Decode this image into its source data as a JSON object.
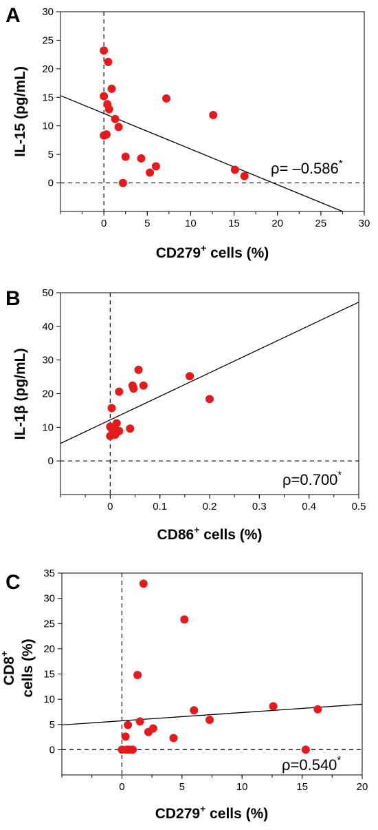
{
  "chart_data": [
    {
      "type": "scatter",
      "panel_label": "A",
      "xlabel_main": "CD279",
      "xlabel_sup": "+",
      "xlabel_rest": " cells (%)",
      "ylabel": "IL-15 (pg/mL)",
      "xlim": [
        -5,
        30
      ],
      "ylim": [
        -5,
        30
      ],
      "xticks": [
        0,
        5,
        10,
        15,
        20,
        25,
        30
      ],
      "yticks": [
        0,
        5,
        10,
        15,
        20,
        25,
        30
      ],
      "annotation": "ρ= –0.586",
      "annotation_mark": "*",
      "fit_line": [
        [
          -5,
          15.3
        ],
        [
          27.5,
          -5
        ]
      ],
      "x": [
        0,
        0.5,
        0.9,
        0,
        0.4,
        0.6,
        1.3,
        7.2,
        12.6,
        1.7,
        0.3,
        0,
        2.5,
        4.3,
        6.0,
        5.3,
        2.2,
        15.1,
        16.2
      ],
      "y": [
        23.2,
        21.2,
        16.5,
        15.2,
        13.8,
        12.9,
        11.2,
        14.8,
        11.9,
        9.8,
        8.5,
        8.3,
        4.6,
        4.3,
        2.9,
        1.8,
        0,
        2.3,
        1.2
      ]
    },
    {
      "type": "scatter",
      "panel_label": "B",
      "xlabel_main": "CD86",
      "xlabel_sup": "+",
      "xlabel_rest": " cells (%)",
      "ylabel": "IL-1β (pg/mL)",
      "xlim": [
        -0.1,
        0.5
      ],
      "ylim": [
        -10,
        50
      ],
      "xticks": [
        0,
        0.1,
        0.2,
        0.3,
        0.4,
        0.5
      ],
      "yticks": [
        0,
        10,
        20,
        30,
        40,
        50
      ],
      "annotation": "ρ=0.700",
      "annotation_mark": "*",
      "fit_line": [
        [
          -0.1,
          5.2
        ],
        [
          0.5,
          47.2
        ]
      ],
      "x": [
        0.057,
        0.16,
        0.045,
        0.067,
        0.047,
        0.018,
        0.2,
        0.003,
        0.013,
        0.0,
        0.003,
        0.04,
        0.01,
        0.018,
        0.0,
        0.01,
        0.012
      ],
      "y": [
        27.1,
        25.2,
        22.4,
        22.4,
        21.5,
        20.6,
        18.4,
        15.7,
        11.2,
        10.2,
        9.6,
        9.6,
        9.0,
        8.9,
        7.4,
        7.8,
        8.3
      ]
    },
    {
      "type": "scatter",
      "panel_label": "C",
      "xlabel_main": "CD279",
      "xlabel_sup": "+",
      "xlabel_rest": " cells (%)",
      "ylabel_main": "CD8",
      "ylabel_sup": "+",
      "ylabel_rest": " cells (%)",
      "xlim": [
        -5,
        20
      ],
      "ylim": [
        -5,
        35
      ],
      "xticks": [
        0,
        5,
        10,
        15,
        20
      ],
      "yticks": [
        0,
        5,
        10,
        15,
        20,
        25,
        30,
        35
      ],
      "annotation": "ρ=0.540",
      "annotation_mark": "*",
      "fit_line": [
        [
          -5,
          4.9
        ],
        [
          20,
          9.0
        ]
      ],
      "x": [
        1.8,
        5.2,
        1.3,
        12.6,
        16.3,
        6.0,
        7.3,
        1.5,
        0.5,
        2.6,
        2.2,
        4.3,
        0.3,
        0.0,
        0.4,
        0.9,
        0.6,
        15.3
      ],
      "y": [
        32.9,
        25.8,
        14.8,
        8.6,
        8.0,
        7.8,
        5.9,
        5.6,
        4.9,
        4.2,
        3.5,
        2.3,
        2.6,
        0.0,
        0.0,
        0.0,
        0.0,
        0.0
      ]
    }
  ]
}
